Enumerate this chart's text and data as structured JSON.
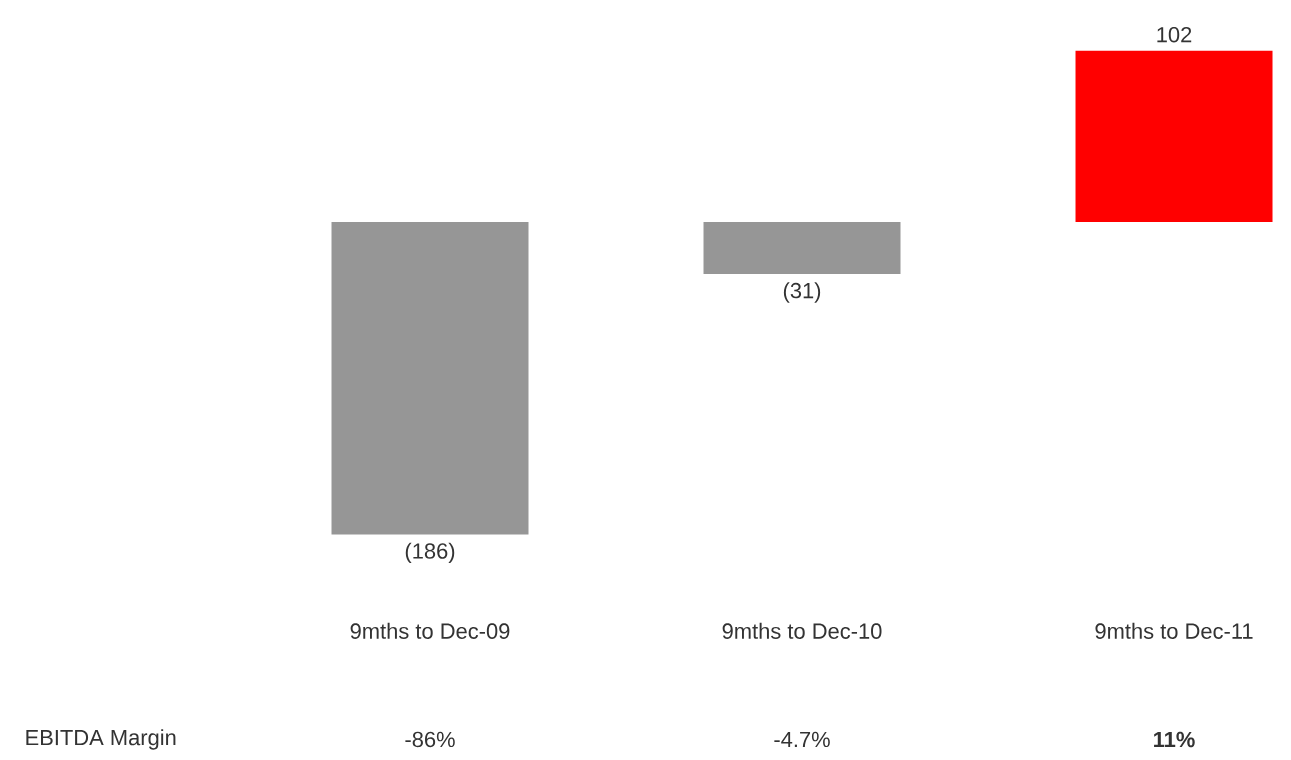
{
  "chart_data": {
    "type": "bar",
    "categories": [
      "9mths to Dec-09",
      "9mths to Dec-10",
      "9mths to Dec-11"
    ],
    "values": [
      -186,
      -31,
      102
    ],
    "colors": [
      "#969696",
      "#969696",
      "#ff0000"
    ],
    "value_labels": [
      "(186)",
      "(31)",
      "102"
    ],
    "annotations": [
      "EBITDA Margin",
      "-86%",
      "-4.7%",
      "**11%**"
    ]
  }
}
